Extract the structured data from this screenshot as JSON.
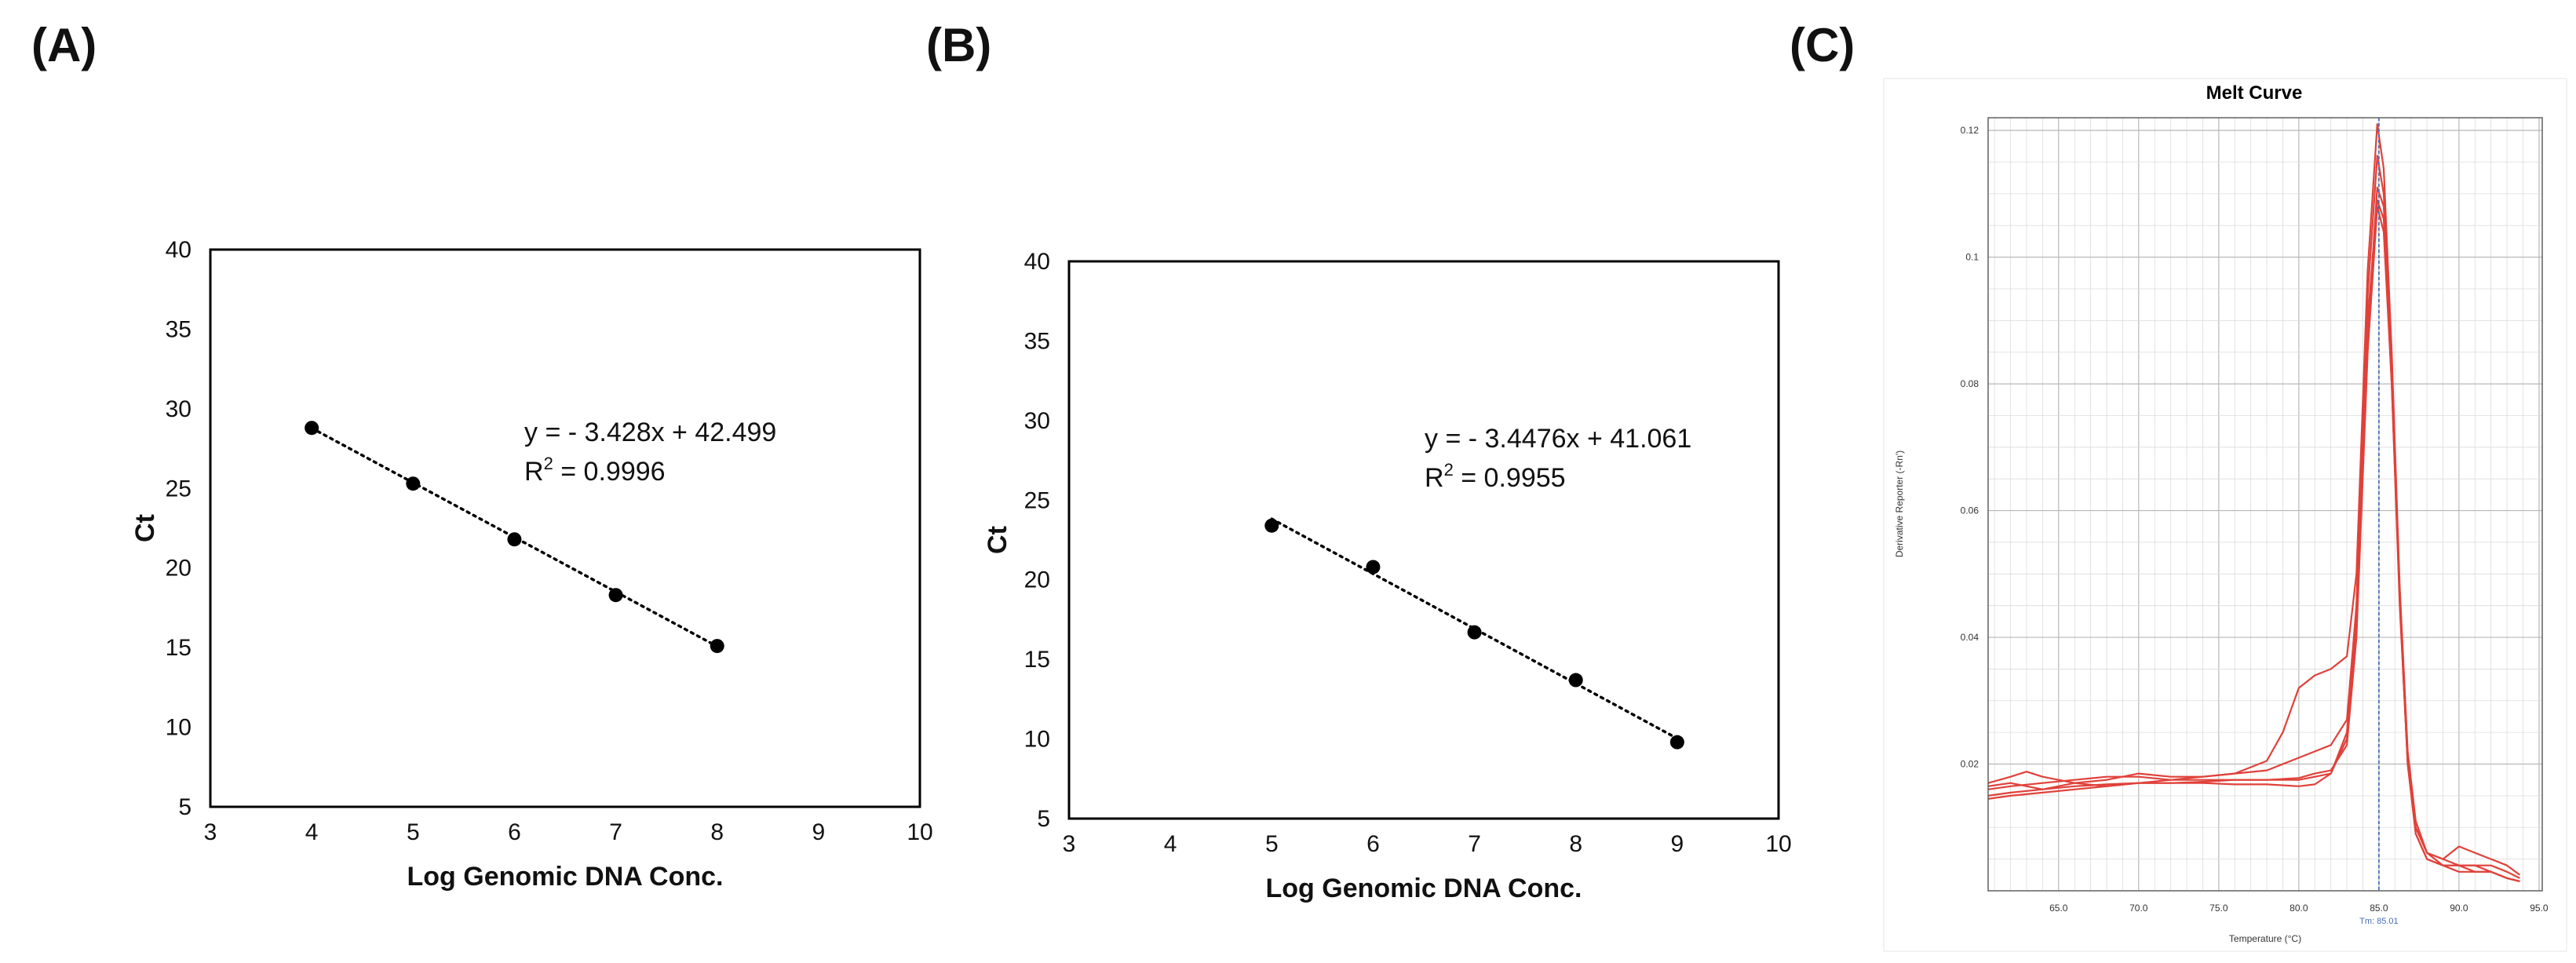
{
  "panels": {
    "a": {
      "label": "(A)"
    },
    "b": {
      "label": "(B)"
    },
    "c": {
      "label": "(C)"
    }
  },
  "chart_data": [
    {
      "type": "scatter",
      "panel": "(A)",
      "xlabel": "Log Genomic DNA Conc.",
      "ylabel": "Ct",
      "xlim": [
        3,
        10
      ],
      "ylim": [
        5,
        40
      ],
      "xticks": [
        3,
        4,
        5,
        6,
        7,
        8,
        9,
        10
      ],
      "yticks": [
        5,
        10,
        15,
        20,
        25,
        30,
        35,
        40
      ],
      "x": [
        4,
        5,
        6,
        7,
        8
      ],
      "y": [
        28.8,
        25.3,
        21.8,
        18.3,
        15.1
      ],
      "trendline": {
        "slope": -3.428,
        "intercept": 42.499,
        "style": "dotted"
      },
      "equation": "y = - 3.428x + 42.499",
      "r2_label": "R",
      "r2_sup": "2",
      "r2_value": " = 0.9996",
      "grid": false
    },
    {
      "type": "scatter",
      "panel": "(B)",
      "xlabel": "Log Genomic DNA Conc.",
      "ylabel": "Ct",
      "xlim": [
        3,
        10
      ],
      "ylim": [
        5,
        40
      ],
      "xticks": [
        3,
        4,
        5,
        6,
        7,
        8,
        9,
        10
      ],
      "yticks": [
        5,
        10,
        15,
        20,
        25,
        30,
        35,
        40
      ],
      "x": [
        5,
        6,
        7,
        8,
        9
      ],
      "y": [
        23.4,
        20.8,
        16.7,
        13.7,
        9.8
      ],
      "trendline": {
        "slope": -3.4476,
        "intercept": 41.061,
        "style": "dotted"
      },
      "equation": "y = - 3.4476x + 41.061",
      "r2_label": "R",
      "r2_sup": "2",
      "r2_value": " = 0.9955",
      "grid": false
    },
    {
      "type": "line",
      "panel": "(C)",
      "title": "Melt Curve",
      "xlabel": "Temperature (°C)",
      "ylabel": "Derivative Reporter (-Rn')",
      "xlim": [
        60.6,
        95.2
      ],
      "ylim": [
        0,
        0.122
      ],
      "xtick_values": [
        65,
        70,
        75,
        80,
        85,
        90,
        95
      ],
      "xtick_labels": [
        "65.0",
        "70.0",
        "75.0",
        "80.0",
        "85.0",
        "90.0",
        "95.0"
      ],
      "ytick_values": [
        0.02,
        0.04,
        0.06,
        0.08,
        0.1,
        0.12
      ],
      "ytick_labels": [
        "0.02",
        "0.04",
        "0.06",
        "0.08",
        "0.1",
        "0.12"
      ],
      "grid": true,
      "tm_line": {
        "x": 85.0,
        "label": "Tm: 85.01",
        "color": "#4a6fb5"
      },
      "curve_color": "#e0413a",
      "series": [
        {
          "x": [
            60.6,
            62,
            64,
            66,
            68,
            70,
            72,
            74,
            76,
            78,
            79,
            80,
            81,
            82,
            83,
            83.6,
            84.3,
            84.9,
            85.3,
            85.8,
            86.3,
            86.8,
            87.3,
            88,
            89,
            90,
            91,
            92,
            93,
            93.8
          ],
          "y": [
            0.0165,
            0.017,
            0.016,
            0.017,
            0.0175,
            0.0185,
            0.018,
            0.018,
            0.0185,
            0.0205,
            0.025,
            0.032,
            0.034,
            0.035,
            0.037,
            0.05,
            0.098,
            0.121,
            0.114,
            0.085,
            0.048,
            0.022,
            0.011,
            0.006,
            0.005,
            0.007,
            0.006,
            0.005,
            0.004,
            0.0025
          ]
        },
        {
          "x": [
            60.6,
            62,
            64,
            66,
            68,
            70,
            72,
            74,
            76,
            78,
            80,
            81,
            82,
            83,
            83.6,
            84.3,
            84.9,
            85.3,
            85.8,
            86.3,
            86.8,
            87.3,
            88,
            89,
            90,
            91,
            92,
            93,
            93.8
          ],
          "y": [
            0.016,
            0.0165,
            0.017,
            0.0175,
            0.018,
            0.018,
            0.0175,
            0.018,
            0.0185,
            0.019,
            0.021,
            0.022,
            0.023,
            0.027,
            0.045,
            0.094,
            0.116,
            0.11,
            0.082,
            0.046,
            0.02,
            0.01,
            0.006,
            0.005,
            0.004,
            0.004,
            0.004,
            0.003,
            0.002
          ]
        },
        {
          "x": [
            60.6,
            62,
            63,
            64,
            66,
            68,
            70,
            72,
            74,
            76,
            78,
            80,
            81,
            82,
            83,
            83.6,
            84.3,
            84.9,
            85.3,
            85.8,
            86.3,
            86.8,
            87.3,
            88,
            89,
            90,
            91,
            92,
            93,
            93.8
          ],
          "y": [
            0.017,
            0.018,
            0.0188,
            0.018,
            0.017,
            0.0165,
            0.017,
            0.0175,
            0.0175,
            0.0175,
            0.0175,
            0.0175,
            0.018,
            0.0185,
            0.025,
            0.045,
            0.09,
            0.109,
            0.106,
            0.08,
            0.045,
            0.02,
            0.009,
            0.005,
            0.004,
            0.004,
            0.004,
            0.003,
            0.002,
            0.0015
          ]
        },
        {
          "x": [
            60.6,
            62,
            64,
            66,
            68,
            70,
            72,
            74,
            76,
            78,
            80,
            81,
            82,
            83,
            83.6,
            84.3,
            84.9,
            85.3,
            85.8,
            86.3,
            86.8,
            87.3,
            88,
            89,
            90,
            91,
            92,
            93,
            93.8
          ],
          "y": [
            0.015,
            0.0155,
            0.016,
            0.0165,
            0.0168,
            0.017,
            0.017,
            0.017,
            0.0168,
            0.0168,
            0.0165,
            0.0168,
            0.0185,
            0.024,
            0.043,
            0.088,
            0.111,
            0.108,
            0.083,
            0.047,
            0.021,
            0.01,
            0.006,
            0.004,
            0.004,
            0.003,
            0.003,
            0.002,
            0.0015
          ]
        },
        {
          "x": [
            60.6,
            62,
            64,
            66,
            68,
            70,
            72,
            74,
            76,
            78,
            80,
            81,
            82,
            83,
            83.6,
            84.3,
            84.9,
            85.3,
            85.8,
            86.3,
            86.8,
            87.3,
            88,
            89,
            90,
            91,
            92,
            93,
            93.8
          ],
          "y": [
            0.0145,
            0.015,
            0.0155,
            0.016,
            0.0165,
            0.017,
            0.017,
            0.0172,
            0.0175,
            0.0175,
            0.0178,
            0.0185,
            0.019,
            0.023,
            0.04,
            0.085,
            0.108,
            0.104,
            0.08,
            0.046,
            0.02,
            0.009,
            0.005,
            0.004,
            0.003,
            0.003,
            0.003,
            0.002,
            0.0015
          ]
        }
      ]
    }
  ]
}
